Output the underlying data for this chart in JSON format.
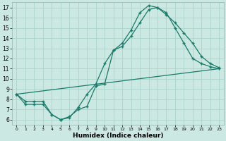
{
  "xlabel": "Humidex (Indice chaleur)",
  "bg_color": "#cce8e2",
  "line_color": "#1a7a6a",
  "grid_color": "#aad4cc",
  "xlim": [
    -0.5,
    23.5
  ],
  "ylim": [
    5.5,
    17.5
  ],
  "xticks": [
    0,
    1,
    2,
    3,
    4,
    5,
    6,
    7,
    8,
    9,
    10,
    11,
    12,
    13,
    14,
    15,
    16,
    17,
    18,
    19,
    20,
    21,
    22,
    23
  ],
  "yticks": [
    6,
    7,
    8,
    9,
    10,
    11,
    12,
    13,
    14,
    15,
    16,
    17
  ],
  "line1_x": [
    0,
    1,
    2,
    3,
    4,
    5,
    6,
    7,
    8,
    9,
    10,
    11,
    12,
    13,
    14,
    15,
    16,
    17,
    18,
    19,
    20,
    21,
    22,
    23
  ],
  "line1_y": [
    8.5,
    7.5,
    7.5,
    7.5,
    6.5,
    6.0,
    6.3,
    7.0,
    7.3,
    9.3,
    9.5,
    12.8,
    13.2,
    14.2,
    15.5,
    16.8,
    17.0,
    16.5,
    15.0,
    13.5,
    12.0,
    11.5,
    11.2,
    11.0
  ],
  "line2_x": [
    0,
    1,
    2,
    3,
    4,
    5,
    6,
    7,
    8,
    9,
    10,
    11,
    12,
    13,
    14,
    15,
    16,
    17,
    18,
    19,
    20,
    21,
    22,
    23
  ],
  "line2_y": [
    8.5,
    7.8,
    7.8,
    7.8,
    6.5,
    6.0,
    6.2,
    7.2,
    8.5,
    9.5,
    11.5,
    12.8,
    13.5,
    14.8,
    16.5,
    17.2,
    17.0,
    16.3,
    15.5,
    14.5,
    13.5,
    12.2,
    11.5,
    11.1
  ],
  "line3_x": [
    0,
    23
  ],
  "line3_y": [
    8.5,
    11.0
  ]
}
